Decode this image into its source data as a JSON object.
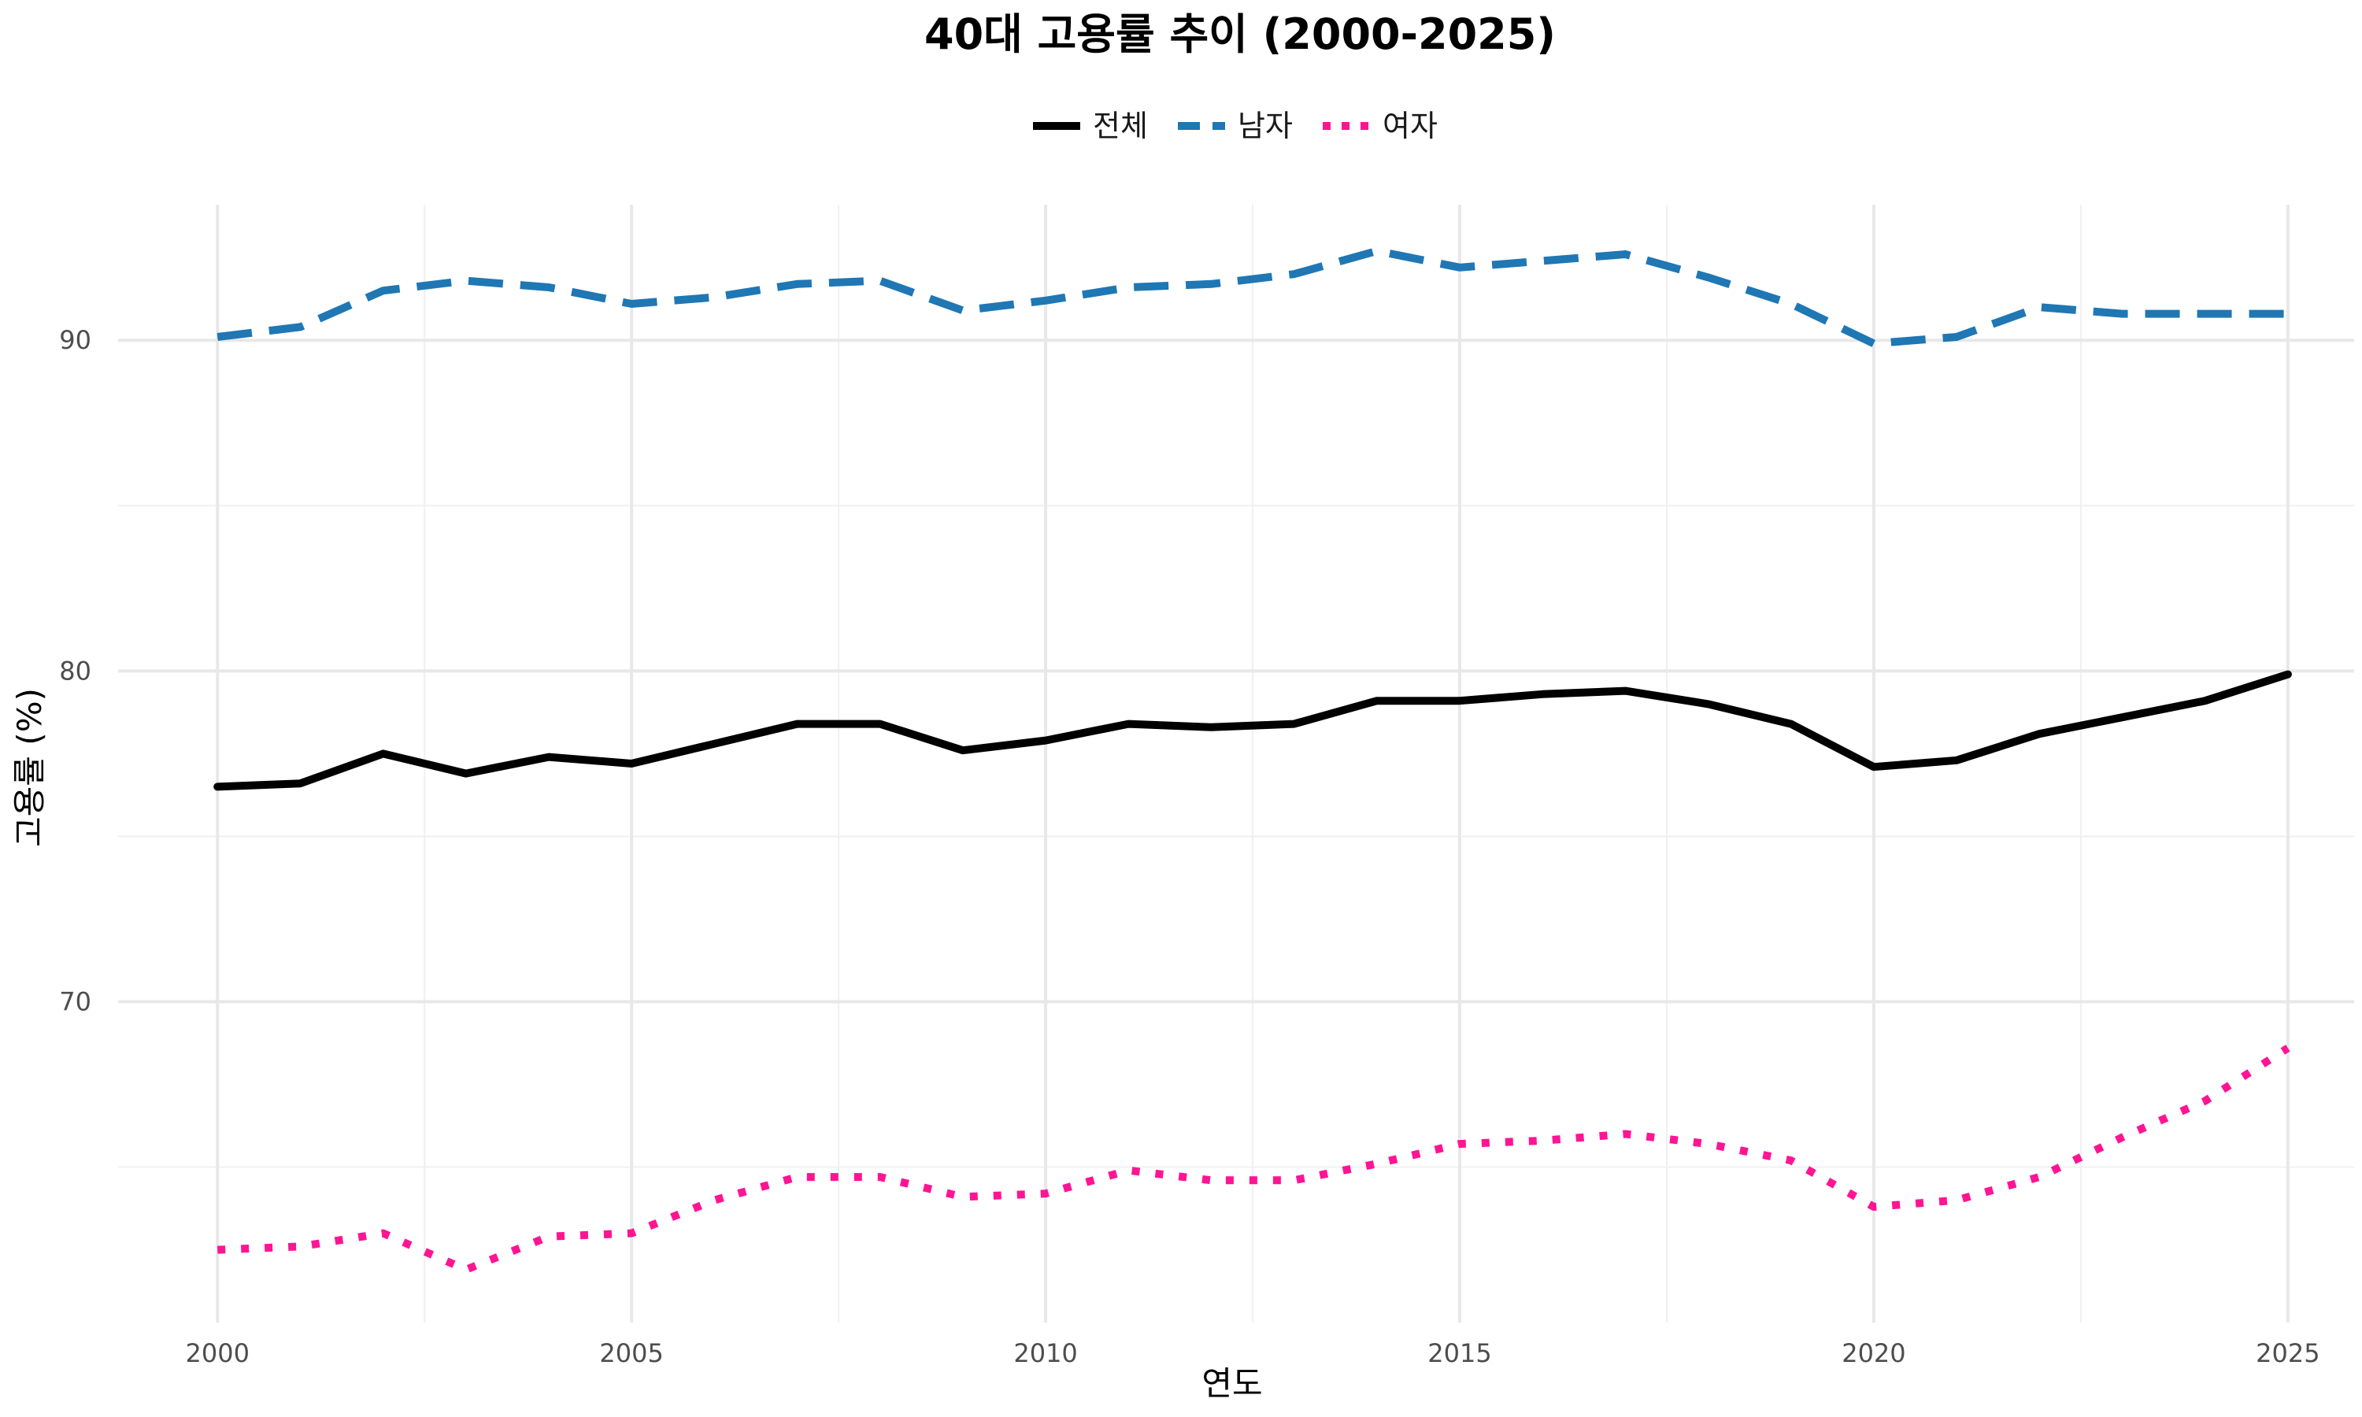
{
  "chart_data": {
    "type": "line",
    "title": "40대 고용률 추이 (2000-2025)",
    "xlabel": "연도",
    "ylabel": "고용률 (%)",
    "xlim": [
      1998.8,
      2025.8
    ],
    "ylim": [
      60.3,
      94.1
    ],
    "x_ticks": [
      2000,
      2005,
      2010,
      2015,
      2020,
      2025
    ],
    "y_ticks": [
      70,
      80,
      90
    ],
    "y_minor_ticks": [
      65,
      75,
      85
    ],
    "x_minor_ticks": [
      2002.5,
      2007.5,
      2012.5,
      2017.5,
      2022.5
    ],
    "grid": true,
    "legend_position": "top",
    "x": [
      2000,
      2001,
      2002,
      2003,
      2004,
      2005,
      2006,
      2007,
      2008,
      2009,
      2010,
      2011,
      2012,
      2013,
      2014,
      2015,
      2016,
      2017,
      2018,
      2019,
      2020,
      2021,
      2022,
      2023,
      2024,
      2025
    ],
    "series": [
      {
        "name": "전체",
        "color": "#000000",
        "dash": "solid",
        "values": [
          76.5,
          76.6,
          77.5,
          76.9,
          77.4,
          77.2,
          77.8,
          78.4,
          78.4,
          77.6,
          77.9,
          78.4,
          78.3,
          78.4,
          79.1,
          79.1,
          79.3,
          79.4,
          79.0,
          78.4,
          77.1,
          77.3,
          78.1,
          78.6,
          79.1,
          79.9
        ]
      },
      {
        "name": "남자",
        "color": "#1f77b4",
        "dash": "dashed",
        "values": [
          90.1,
          90.4,
          91.5,
          91.8,
          91.6,
          91.1,
          91.3,
          91.7,
          91.8,
          90.9,
          91.2,
          91.6,
          91.7,
          92.0,
          92.7,
          92.2,
          92.4,
          92.6,
          91.9,
          91.1,
          89.9,
          90.1,
          91.0,
          90.8,
          90.8,
          90.8
        ]
      },
      {
        "name": "여자",
        "color": "#ff1493",
        "dash": "dotted",
        "values": [
          62.5,
          62.6,
          63.0,
          61.9,
          62.9,
          63.0,
          64.0,
          64.7,
          64.7,
          64.1,
          64.2,
          64.9,
          64.6,
          64.6,
          65.1,
          65.7,
          65.8,
          66.0,
          65.7,
          65.2,
          63.8,
          64.0,
          64.7,
          65.9,
          67.0,
          68.6
        ]
      }
    ]
  }
}
